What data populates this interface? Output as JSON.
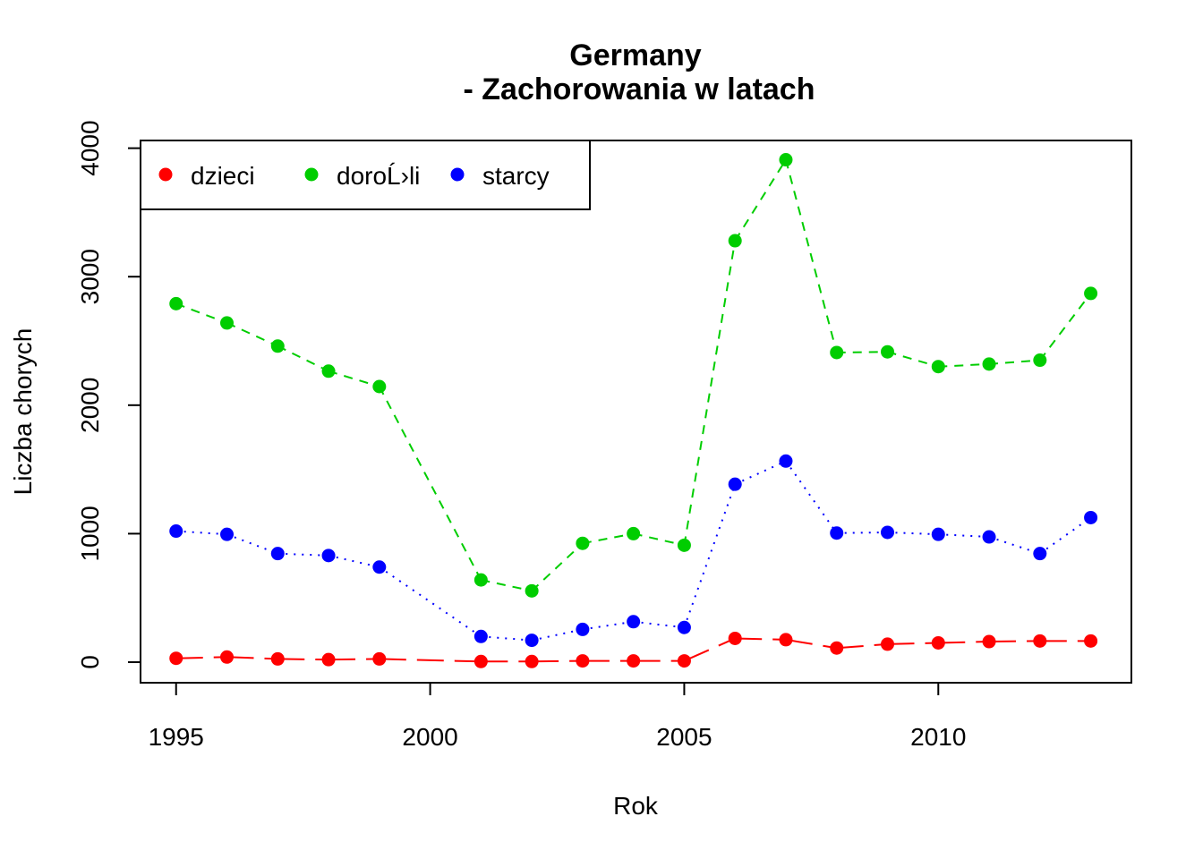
{
  "chart_data": {
    "type": "line",
    "title": [
      "Germany",
      "- Zachorowania w latach"
    ],
    "xlabel": "Rok",
    "ylabel": "Liczba chorych",
    "x": [
      1995,
      1996,
      1997,
      1998,
      1999,
      2001,
      2002,
      2003,
      2004,
      2005,
      2006,
      2007,
      2008,
      2009,
      2010,
      2011,
      2012,
      2013
    ],
    "xticks": [
      1995,
      2000,
      2005,
      2010
    ],
    "yticks": [
      0,
      1000,
      2000,
      3000,
      4000
    ],
    "xlim": [
      1994.3,
      2013.8
    ],
    "ylim": [
      -160,
      4060
    ],
    "legend_position": "top-left",
    "series": [
      {
        "name": "dzieci",
        "color": "#ff0000",
        "line_style": "longdash",
        "values": [
          30,
          40,
          25,
          20,
          25,
          5,
          5,
          10,
          10,
          10,
          185,
          175,
          110,
          140,
          150,
          160,
          165,
          165
        ]
      },
      {
        "name": "doroĹ›li",
        "color": "#00cd00",
        "line_style": "dashed",
        "values": [
          2790,
          2640,
          2460,
          2265,
          2145,
          640,
          555,
          925,
          1000,
          910,
          3280,
          3910,
          2410,
          2415,
          2300,
          2320,
          2350,
          2870
        ]
      },
      {
        "name": "starcy",
        "color": "#0000ff",
        "line_style": "dotted",
        "values": [
          1020,
          995,
          845,
          830,
          740,
          200,
          170,
          255,
          315,
          270,
          1385,
          1565,
          1005,
          1010,
          995,
          975,
          845,
          1125
        ]
      }
    ]
  }
}
